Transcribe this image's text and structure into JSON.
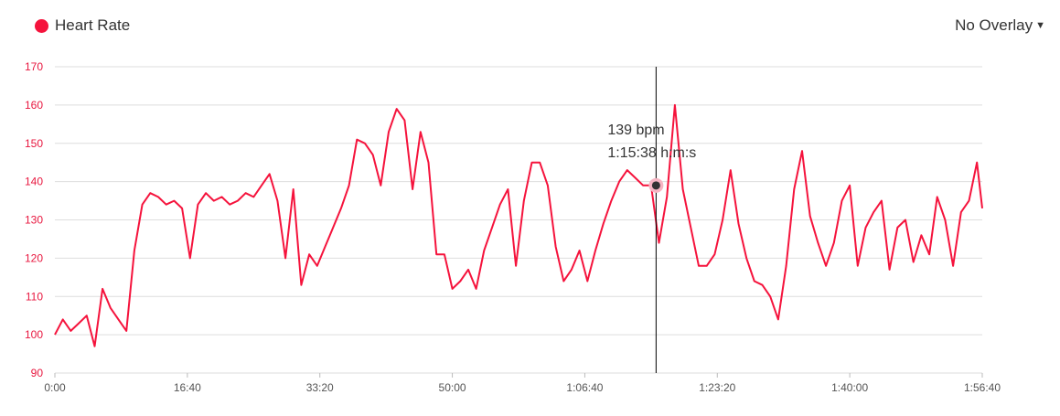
{
  "header": {
    "legend_label": "Heart Rate",
    "overlay_label": "No Overlay",
    "overlay_caret_icon": "caret-down-icon"
  },
  "colors": {
    "series": "#f5133c",
    "grid": "#dedede",
    "cursor": "#000000",
    "marker": "#333333",
    "marker_halo": "#f7b5c3"
  },
  "tooltip": {
    "value_text": "139 bpm",
    "time_text": "1:15:38 h:m:s"
  },
  "chart_data": {
    "type": "line",
    "title": "",
    "xlabel": "",
    "ylabel": "",
    "series": [
      {
        "name": "Heart Rate",
        "x": [
          "0:00",
          "1:00",
          "2:00",
          "3:00",
          "4:00",
          "5:00",
          "6:00",
          "7:00",
          "8:00",
          "9:00",
          "10:00",
          "11:00",
          "12:00",
          "13:00",
          "14:00",
          "15:00",
          "16:00",
          "17:00",
          "18:00",
          "19:00",
          "20:00",
          "21:00",
          "22:00",
          "23:00",
          "24:00",
          "25:00",
          "26:00",
          "27:00",
          "28:00",
          "29:00",
          "30:00",
          "31:00",
          "32:00",
          "33:00",
          "34:00",
          "35:00",
          "36:00",
          "37:00",
          "38:00",
          "39:00",
          "40:00",
          "41:00",
          "42:00",
          "43:00",
          "44:00",
          "45:00",
          "46:00",
          "47:00",
          "48:00",
          "49:00",
          "50:00",
          "51:00",
          "52:00",
          "53:00",
          "54:00",
          "55:00",
          "56:00",
          "57:00",
          "58:00",
          "59:00",
          "1:00:00",
          "1:01:00",
          "1:02:00",
          "1:03:00",
          "1:04:00",
          "1:05:00",
          "1:06:00",
          "1:07:00",
          "1:08:00",
          "1:09:00",
          "1:10:00",
          "1:11:00",
          "1:12:00",
          "1:13:00",
          "1:14:00",
          "1:15:00",
          "1:16:00",
          "1:17:00",
          "1:18:00",
          "1:19:00",
          "1:20:00",
          "1:21:00",
          "1:22:00",
          "1:23:00",
          "1:24:00",
          "1:25:00",
          "1:26:00",
          "1:27:00",
          "1:28:00",
          "1:29:00",
          "1:30:00",
          "1:31:00",
          "1:32:00",
          "1:33:00",
          "1:34:00",
          "1:35:00",
          "1:36:00",
          "1:37:00",
          "1:38:00",
          "1:39:00",
          "1:40:00",
          "1:41:00",
          "1:42:00",
          "1:43:00",
          "1:44:00",
          "1:45:00",
          "1:46:00",
          "1:47:00",
          "1:48:00",
          "1:49:00",
          "1:50:00",
          "1:51:00",
          "1:52:00",
          "1:53:00",
          "1:54:00",
          "1:55:00",
          "1:56:00",
          "1:56:40"
        ],
        "y": [
          100,
          104,
          101,
          103,
          105,
          97,
          112,
          107,
          104,
          101,
          122,
          134,
          137,
          136,
          134,
          135,
          133,
          120,
          134,
          137,
          135,
          136,
          134,
          135,
          137,
          136,
          139,
          142,
          135,
          120,
          138,
          113,
          121,
          118,
          123,
          128,
          133,
          139,
          151,
          150,
          147,
          139,
          153,
          159,
          156,
          138,
          153,
          145,
          121,
          121,
          112,
          114,
          117,
          112,
          122,
          128,
          134,
          138,
          118,
          135,
          145,
          145,
          139,
          123,
          114,
          117,
          122,
          114,
          122,
          129,
          135,
          140,
          143,
          141,
          139,
          139,
          124,
          136,
          160,
          138,
          128,
          118,
          118,
          121,
          130,
          143,
          129,
          120,
          114,
          113,
          110,
          104,
          118,
          138,
          148,
          131,
          124,
          118,
          124,
          135,
          139,
          118,
          128,
          132,
          135,
          117,
          128,
          130,
          119,
          126,
          121,
          136,
          130,
          118,
          132,
          135,
          145,
          133
        ],
        "values_note_hidden": ""
      }
    ],
    "x_ticks": [
      "0:00",
      "16:40",
      "33:20",
      "50:00",
      "1:06:40",
      "1:23:20",
      "1:40:00",
      "1:56:40"
    ],
    "y_ticks": [
      "90",
      "100",
      "110",
      "120",
      "130",
      "140",
      "150",
      "160",
      "170"
    ],
    "xlim_seconds": [
      0,
      7000
    ],
    "ylim": [
      90,
      170
    ],
    "grid": true,
    "legend": "top-left",
    "cursor": {
      "x": "1:15:38",
      "y": 139
    }
  }
}
